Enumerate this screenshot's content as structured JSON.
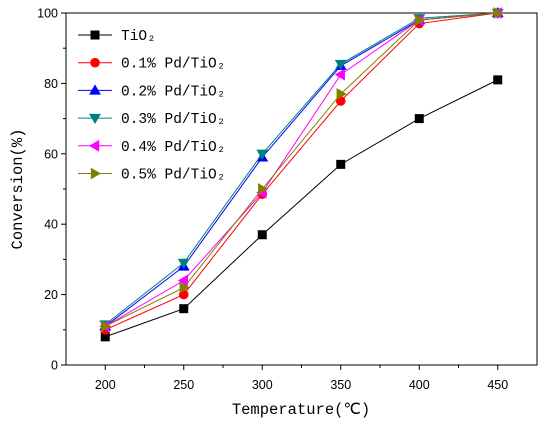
{
  "chart_data": {
    "type": "line",
    "xlabel": "Temperature(℃)",
    "ylabel": "Conversion(%)",
    "x": [
      200,
      250,
      300,
      350,
      400,
      450
    ],
    "xlim": [
      175,
      475
    ],
    "ylim": [
      0,
      100
    ],
    "xticks": [
      200,
      250,
      300,
      350,
      400,
      450
    ],
    "yticks": [
      0,
      20,
      40,
      60,
      80,
      100
    ],
    "grid": false,
    "legend": "top-left",
    "series": [
      {
        "name": "TiO₂",
        "color": "#000000",
        "marker": "square",
        "values": [
          8,
          16,
          37,
          57,
          70,
          81
        ]
      },
      {
        "name": "0.1% Pd/TiO₂",
        "color": "#ff0000",
        "marker": "circle",
        "values": [
          10,
          20,
          48.5,
          75,
          97,
          100
        ]
      },
      {
        "name": "0.2% Pd/TiO₂",
        "color": "#0000ff",
        "marker": "triangle-up",
        "values": [
          11,
          28,
          59,
          85,
          98,
          100
        ]
      },
      {
        "name": "0.3% Pd/TiO₂",
        "color": "#008080",
        "marker": "triangle-down",
        "values": [
          11.5,
          29,
          60,
          85.5,
          98.5,
          100
        ]
      },
      {
        "name": "0.4% Pd/TiO₂",
        "color": "#ff00ff",
        "marker": "triangle-left",
        "values": [
          11,
          24,
          49,
          82.5,
          98,
          100
        ]
      },
      {
        "name": "0.5% Pd/TiO₂",
        "color": "#808000",
        "marker": "triangle-right",
        "values": [
          11,
          22,
          50,
          77,
          98,
          100
        ]
      }
    ]
  }
}
